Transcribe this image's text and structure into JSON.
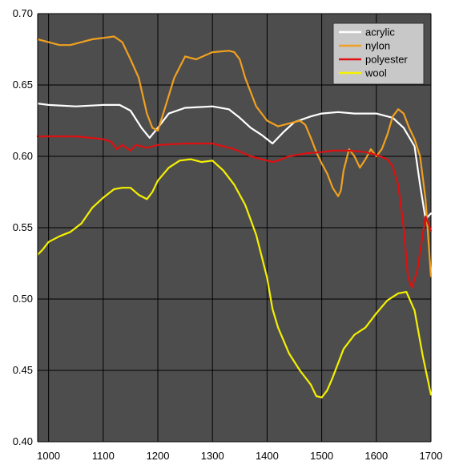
{
  "chart_data": {
    "type": "line",
    "title": "",
    "xlabel": "",
    "ylabel": "",
    "xlim": [
      980,
      1700
    ],
    "ylim": [
      0.4,
      0.7
    ],
    "x_ticks": [
      "1000",
      "1100",
      "1200",
      "1300",
      "1400",
      "1500",
      "1600",
      "1700"
    ],
    "y_ticks": [
      "0.40",
      "0.45",
      "0.50",
      "0.55",
      "0.60",
      "0.65",
      "0.70"
    ],
    "grid": true,
    "legend_position": "top-right",
    "background": "#4d4d4d",
    "series": [
      {
        "name": "acrylic",
        "color": "#ffffff",
        "x": [
          980,
          1000,
          1050,
          1100,
          1130,
          1150,
          1170,
          1185,
          1200,
          1220,
          1250,
          1300,
          1330,
          1350,
          1370,
          1390,
          1410,
          1430,
          1450,
          1480,
          1500,
          1530,
          1560,
          1600,
          1630,
          1650,
          1670,
          1680,
          1690,
          1700
        ],
        "y": [
          0.637,
          0.636,
          0.635,
          0.636,
          0.636,
          0.632,
          0.62,
          0.613,
          0.62,
          0.63,
          0.634,
          0.635,
          0.633,
          0.627,
          0.62,
          0.615,
          0.609,
          0.617,
          0.624,
          0.628,
          0.63,
          0.631,
          0.63,
          0.63,
          0.627,
          0.62,
          0.607,
          0.58,
          0.556,
          0.56
        ]
      },
      {
        "name": "nylon",
        "color": "#f0a020",
        "x": [
          980,
          1000,
          1020,
          1040,
          1060,
          1080,
          1100,
          1120,
          1135,
          1150,
          1165,
          1180,
          1190,
          1200,
          1210,
          1230,
          1250,
          1270,
          1300,
          1330,
          1340,
          1350,
          1360,
          1380,
          1400,
          1420,
          1440,
          1460,
          1470,
          1480,
          1490,
          1500,
          1510,
          1520,
          1530,
          1535,
          1540,
          1550,
          1560,
          1570,
          1580,
          1590,
          1600,
          1610,
          1620,
          1630,
          1640,
          1650,
          1660,
          1670,
          1680,
          1690,
          1700
        ],
        "y": [
          0.682,
          0.68,
          0.678,
          0.678,
          0.68,
          0.682,
          0.683,
          0.684,
          0.68,
          0.668,
          0.655,
          0.63,
          0.62,
          0.618,
          0.63,
          0.655,
          0.67,
          0.668,
          0.673,
          0.674,
          0.673,
          0.668,
          0.655,
          0.635,
          0.625,
          0.621,
          0.623,
          0.625,
          0.622,
          0.613,
          0.603,
          0.595,
          0.588,
          0.578,
          0.572,
          0.576,
          0.59,
          0.605,
          0.6,
          0.592,
          0.598,
          0.605,
          0.6,
          0.605,
          0.615,
          0.628,
          0.633,
          0.63,
          0.62,
          0.612,
          0.6,
          0.57,
          0.516
        ]
      },
      {
        "name": "polyester",
        "color": "#dd1111",
        "x": [
          980,
          1000,
          1050,
          1100,
          1115,
          1125,
          1135,
          1150,
          1160,
          1180,
          1200,
          1250,
          1300,
          1340,
          1370,
          1400,
          1410,
          1420,
          1440,
          1470,
          1500,
          1520,
          1550,
          1580,
          1600,
          1620,
          1630,
          1640,
          1650,
          1658,
          1665,
          1675,
          1690,
          1700
        ],
        "y": [
          0.614,
          0.614,
          0.614,
          0.612,
          0.61,
          0.605,
          0.608,
          0.604,
          0.608,
          0.606,
          0.608,
          0.609,
          0.609,
          0.605,
          0.6,
          0.597,
          0.596,
          0.597,
          0.6,
          0.602,
          0.603,
          0.604,
          0.604,
          0.603,
          0.601,
          0.598,
          0.593,
          0.58,
          0.55,
          0.515,
          0.508,
          0.52,
          0.558,
          0.548
        ]
      },
      {
        "name": "wool",
        "color": "#f5f000",
        "x": [
          980,
          990,
          1000,
          1020,
          1040,
          1060,
          1080,
          1100,
          1120,
          1135,
          1150,
          1165,
          1180,
          1190,
          1200,
          1220,
          1240,
          1260,
          1280,
          1300,
          1320,
          1340,
          1360,
          1380,
          1400,
          1410,
          1420,
          1440,
          1460,
          1480,
          1490,
          1500,
          1510,
          1520,
          1540,
          1560,
          1580,
          1600,
          1620,
          1640,
          1655,
          1670,
          1685,
          1700
        ],
        "y": [
          0.531,
          0.535,
          0.54,
          0.544,
          0.547,
          0.553,
          0.564,
          0.571,
          0.577,
          0.578,
          0.578,
          0.573,
          0.57,
          0.575,
          0.583,
          0.592,
          0.597,
          0.598,
          0.596,
          0.597,
          0.59,
          0.58,
          0.566,
          0.545,
          0.515,
          0.493,
          0.48,
          0.462,
          0.45,
          0.44,
          0.432,
          0.431,
          0.436,
          0.445,
          0.465,
          0.475,
          0.48,
          0.49,
          0.499,
          0.504,
          0.505,
          0.492,
          0.46,
          0.433
        ]
      }
    ]
  }
}
